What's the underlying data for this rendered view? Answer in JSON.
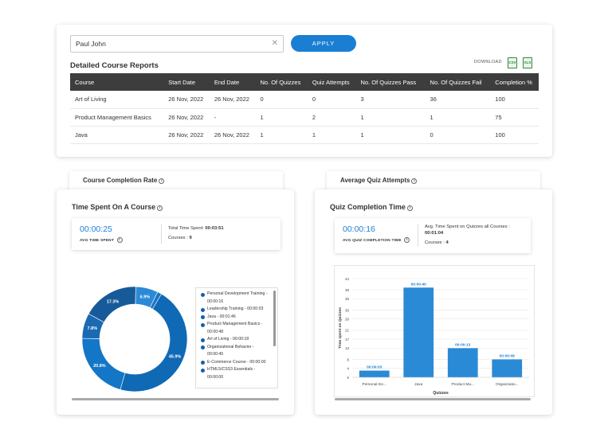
{
  "search": {
    "value": "Paul John",
    "clear_icon": "close-icon",
    "apply_label": "APPLY"
  },
  "report": {
    "title": "Detailed Course Reports",
    "download_label": "DOWNLOAD",
    "csv_label": "CSV",
    "xls_label": "XLS",
    "columns": [
      "Course",
      "Start Date",
      "End Date",
      "No. Of Quizzes",
      "Quiz Attempts",
      "No. Of Quizzes Pass",
      "No. Of Quizzes Fail",
      "Completion %"
    ],
    "rows": [
      [
        "Art of Living",
        "26 Nov, 2022",
        "26 Nov, 2022",
        "0",
        "0",
        "3",
        "36",
        "100"
      ],
      [
        "Product Management Basics",
        "26 Nov, 2022",
        "-",
        "1",
        "2",
        "1",
        "1",
        "75"
      ],
      [
        "Java",
        "26 Nov, 2022",
        "26 Nov, 2022",
        "1",
        "1",
        "1",
        "0",
        "100"
      ]
    ]
  },
  "tabs": {
    "completion_rate": "Course Completion Rate",
    "avg_quiz": "Average Quiz Attempts"
  },
  "time_spent": {
    "title": "Time Spent On A Course",
    "avg_value": "00:00:25",
    "avg_label": "AVG TIME SPENT",
    "total_label": "Total Time Spent:",
    "total_value": "00:03:51",
    "courses_label": "Courses :",
    "courses_value": "9",
    "legend": [
      "Personal Development Training - 00:00:16",
      "Leadership Training - 00:00:03",
      "Java - 00:01:46",
      "Product Management Basics - 00:00:48",
      "Art of Living - 00:00:18",
      "Organizational Behavior - 00:00:40",
      "E-Commerce Course - 00:00:00",
      "HTML5/CSS3 Essentials - 00:00:00"
    ]
  },
  "quiz_time": {
    "title": "Quiz Completion Time",
    "avg_value": "00:00:16",
    "avg_label": "AVG QUIZ COMPLETION TIME",
    "line1": "Avg. Time Spent on Quizzes all Courses :",
    "line1_value": "00:01:04",
    "courses_label": "Courses :",
    "courses_value": "4"
  },
  "chart_data": [
    {
      "type": "pie",
      "categories": [
        "Personal Development Training",
        "Leadership Training",
        "Java",
        "Product Management Basics",
        "Art of Living",
        "Organizational Behavior",
        "E-Commerce Course",
        "HTML5/CSS3 Essentials"
      ],
      "values": [
        6.9,
        1.3,
        45.9,
        20.8,
        7.8,
        17.3,
        0,
        0
      ],
      "data_labels": [
        "6.9%",
        "",
        "45.9%",
        "20.8%",
        "7.8%",
        "17.3%",
        "",
        ""
      ],
      "colors": [
        "#2b8ad6",
        "#1c73c4",
        "#0f69b5",
        "#1476c6",
        "#1a6ab2",
        "#175a99",
        "#2b8ad6",
        "#2b8ad6"
      ]
    },
    {
      "type": "bar",
      "categories": [
        "Personal De...",
        "Java",
        "Product Ma...",
        "Organizatio..."
      ],
      "values": [
        3,
        40,
        13,
        8
      ],
      "data_labels": [
        "00:00:03",
        "00:00:40",
        "00:00:13",
        "00:00:08"
      ],
      "xlabel": "Quizzes",
      "ylabel": "Time spent on Quizzes",
      "yticks": [
        0,
        4,
        8,
        13,
        17,
        21,
        26,
        30,
        35,
        39,
        44
      ],
      "ylim": [
        0,
        44
      ],
      "bar_color": "#2b8ad6"
    }
  ]
}
